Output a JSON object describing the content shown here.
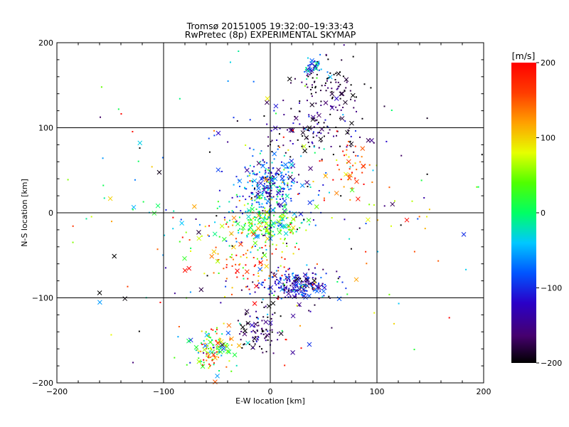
{
  "chart_data": [
    {
      "type": "scatter",
      "title": "Tromsø 20151005 19:32:00–19:33:43",
      "subtitle": "RwPretec (8p) EXPERIMENTAL SKYMAP",
      "xlabel": "E-W location [km]",
      "ylabel": "N-S location [km]",
      "xlim": [
        -200,
        200
      ],
      "ylim": [
        -200,
        200
      ],
      "xticks": [
        "−200",
        "−100",
        "0",
        "100",
        "200"
      ],
      "yticks": [
        "−200",
        "−100",
        "0",
        "100",
        "200"
      ],
      "grid_lines": [
        -100,
        0,
        100
      ],
      "grid": true,
      "markers": [
        "dot",
        "x"
      ],
      "point_color_scale": [
        -200,
        200
      ],
      "clusters": [
        {
          "x": 0,
          "y": 32,
          "sx": 14,
          "sy": 16,
          "n": 260,
          "v": -95,
          "vs": 45
        },
        {
          "x": -5,
          "y": -12,
          "sx": 20,
          "sy": 13,
          "n": 240,
          "v": 25,
          "vs": 55
        },
        {
          "x": 25,
          "y": -86,
          "sx": 15,
          "sy": 9,
          "n": 230,
          "v": -125,
          "vs": 45
        },
        {
          "x": -55,
          "y": -160,
          "sx": 10,
          "sy": 12,
          "n": 130,
          "v": 45,
          "vs": 85
        },
        {
          "x": -12,
          "y": -138,
          "sx": 11,
          "sy": 15,
          "n": 90,
          "v": -175,
          "vs": 30
        },
        {
          "x": 60,
          "y": 150,
          "sx": 16,
          "sy": 14,
          "n": 80,
          "v": -190,
          "vs": 25
        },
        {
          "x": 40,
          "y": 172,
          "sx": 5,
          "sy": 8,
          "n": 45,
          "v": -60,
          "vs": 60
        },
        {
          "x": 40,
          "y": 95,
          "sx": 28,
          "sy": 20,
          "n": 140,
          "v": -165,
          "vs": 40
        },
        {
          "x": 72,
          "y": 48,
          "sx": 12,
          "sy": 18,
          "n": 45,
          "v": 160,
          "vs": 40
        },
        {
          "x": -20,
          "y": -60,
          "sx": 18,
          "sy": 14,
          "n": 60,
          "v": 150,
          "vs": 50
        },
        {
          "x": 0,
          "y": -20,
          "sx": 85,
          "sy": 80,
          "n": 300,
          "v": 0,
          "vs": 130
        }
      ],
      "colorbar": {
        "label": "[m/s]",
        "min": -200,
        "max": 200,
        "ticks": [
          "200",
          "100",
          "0",
          "−100",
          "−200"
        ]
      }
    }
  ]
}
